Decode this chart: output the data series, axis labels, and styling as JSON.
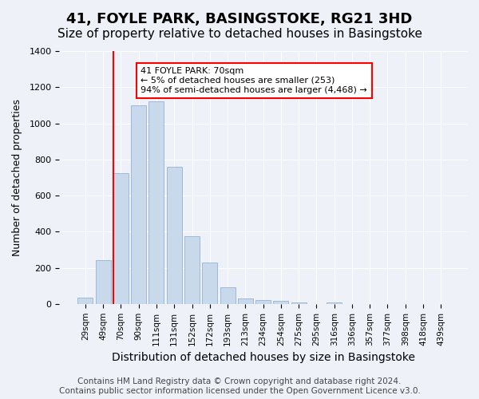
{
  "title": "41, FOYLE PARK, BASINGSTOKE, RG21 3HD",
  "subtitle": "Size of property relative to detached houses in Basingstoke",
  "xlabel": "Distribution of detached houses by size in Basingstoke",
  "ylabel": "Number of detached properties",
  "bar_labels": [
    "29sqm",
    "49sqm",
    "70sqm",
    "90sqm",
    "111sqm",
    "131sqm",
    "152sqm",
    "172sqm",
    "193sqm",
    "213sqm",
    "234sqm",
    "254sqm",
    "275sqm",
    "295sqm",
    "316sqm",
    "336sqm",
    "357sqm",
    "377sqm",
    "398sqm",
    "418sqm",
    "439sqm"
  ],
  "bar_values": [
    35,
    243,
    725,
    1100,
    1120,
    760,
    375,
    230,
    90,
    30,
    20,
    18,
    10,
    0,
    8,
    0,
    0,
    0,
    0,
    0,
    0
  ],
  "bar_color": "#c9d9ec",
  "bar_edge_color": "#a0b8d8",
  "vline_index": 2,
  "vline_color": "red",
  "annotation_title": "41 FOYLE PARK: 70sqm",
  "annotation_line1": "← 5% of detached houses are smaller (253)",
  "annotation_line2": "94% of semi-detached houses are larger (4,468) →",
  "annotation_box_color": "white",
  "annotation_box_edge_color": "red",
  "ylim": [
    0,
    1400
  ],
  "yticks": [
    0,
    200,
    400,
    600,
    800,
    1000,
    1200,
    1400
  ],
  "footer_line1": "Contains HM Land Registry data © Crown copyright and database right 2024.",
  "footer_line2": "Contains public sector information licensed under the Open Government Licence v3.0.",
  "background_color": "#eef2f8",
  "grid_color": "white",
  "title_fontsize": 13,
  "subtitle_fontsize": 11,
  "xlabel_fontsize": 10,
  "ylabel_fontsize": 9,
  "footer_fontsize": 7.5
}
